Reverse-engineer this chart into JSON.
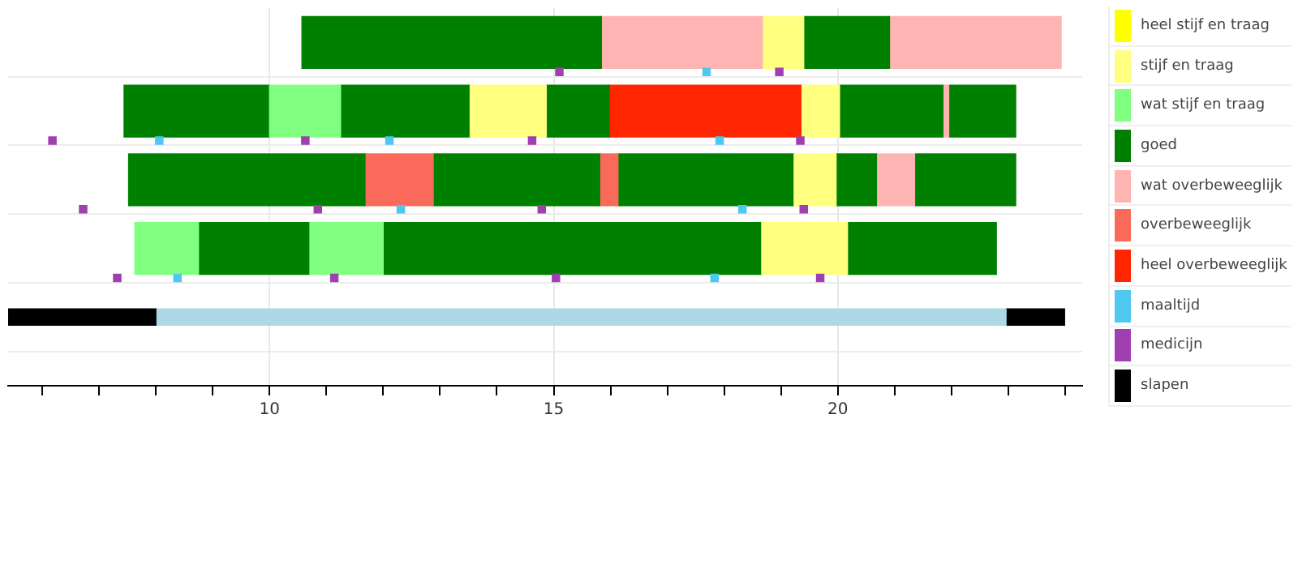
{
  "chart_data": {
    "type": "bar",
    "orientation": "horizontal",
    "categories": [
      null,
      null,
      null,
      null,
      null
    ],
    "xlim": [
      5.4,
      24.3
    ],
    "xticks": [
      {
        "value": 6,
        "label": null
      },
      {
        "value": 7,
        "label": null
      },
      {
        "value": 8,
        "label": null
      },
      {
        "value": 9,
        "label": null
      },
      10,
      {
        "value": 11,
        "label": null
      },
      {
        "value": 12,
        "label": null
      },
      {
        "value": 13,
        "label": null
      },
      {
        "value": 14,
        "label": null
      },
      15,
      {
        "value": 16,
        "label": null
      },
      {
        "value": 17,
        "label": null
      },
      {
        "value": 18,
        "label": null
      },
      {
        "value": 19,
        "label": null
      },
      20,
      {
        "value": 21,
        "label": null
      },
      {
        "value": 22,
        "label": null
      },
      {
        "value": 23,
        "label": null
      },
      {
        "value": 24,
        "label": null
      }
    ],
    "grid": true,
    "legend": "right",
    "tick_labels": "x",
    "marker": "square",
    "series": [
      {
        "name": "heel stijf en traag",
        "color": "#ffff00",
        "base": [
          null,
          null,
          null,
          null,
          null
        ],
        "values": [
          null,
          null,
          null,
          null,
          null
        ]
      },
      {
        "name": "stijf en traag",
        "color": "#ffff80",
        "base": [
          18.69,
          13.53,
          19.23,
          18.66,
          null
        ],
        "values": [
          0.71,
          1.34,
          0.74,
          1.51,
          null
        ]
      },
      {
        "color": "#ffff80",
        "base": [
          null,
          19.37,
          null,
          null,
          null
        ],
        "values": [
          null,
          0.66,
          null,
          null,
          null
        ]
      },
      {
        "name": "wat stijf en traag",
        "color": "#80ff80",
        "base": [
          null,
          10.0,
          null,
          7.63,
          null
        ],
        "values": [
          null,
          1.25,
          null,
          1.12,
          null
        ]
      },
      {
        "color": "#80ff80",
        "base": [
          null,
          null,
          null,
          10.71,
          null
        ],
        "values": [
          null,
          null,
          null,
          1.29,
          null
        ]
      },
      {
        "name": "goed",
        "color": "#008000",
        "base": [
          10.57,
          7.44,
          7.52,
          8.75,
          null
        ],
        "values": [
          5.27,
          2.56,
          4.16,
          1.96,
          null
        ]
      },
      {
        "color": "#008000",
        "base": [
          19.4,
          11.25,
          12.9,
          12.0,
          null
        ],
        "values": [
          1.51,
          2.28,
          2.91,
          6.66,
          null
        ]
      },
      {
        "color": "#008000",
        "base": [
          null,
          14.87,
          16.15,
          20.17,
          null
        ],
        "values": [
          null,
          1.11,
          3.08,
          2.62,
          null
        ]
      },
      {
        "color": "#008000",
        "base": [
          null,
          20.03,
          19.97,
          null,
          null
        ],
        "values": [
          null,
          1.82,
          0.71,
          null,
          null
        ]
      },
      {
        "color": "#008000",
        "base": [
          null,
          21.97,
          21.37,
          null,
          null
        ],
        "values": [
          null,
          1.16,
          1.76,
          null,
          null
        ]
      },
      {
        "name": "wat overbeweeglijk",
        "color": "#ffb4b4",
        "base": [
          15.84,
          21.85,
          20.68,
          null,
          null
        ],
        "values": [
          2.85,
          0.12,
          0.69,
          null,
          null
        ]
      },
      {
        "color": "#ffb4b4",
        "base": [
          20.91,
          null,
          null,
          null,
          null
        ],
        "values": [
          3.02,
          null,
          null,
          null,
          null
        ]
      },
      {
        "name": "overbeweeglijk",
        "color": "#fa6a5a",
        "base": [
          null,
          null,
          11.68,
          null,
          null
        ],
        "values": [
          null,
          null,
          1.22,
          null,
          null
        ]
      },
      {
        "color": "#fa6a5a",
        "base": [
          null,
          null,
          15.81,
          null,
          null
        ],
        "values": [
          null,
          null,
          0.34,
          null,
          null
        ]
      },
      {
        "name": "heel overbeweeglijk",
        "color": "#ff2500",
        "base": [
          null,
          15.98,
          null,
          null,
          null
        ],
        "values": [
          null,
          3.39,
          null,
          null,
          null
        ]
      },
      {
        "name": "maaltijd",
        "type": "scatter",
        "color": "#4fc8f0",
        "values": [
          17.69,
          8.06,
          12.31,
          8.38,
          null
        ]
      },
      {
        "type": "scatter",
        "color": "#4fc8f0",
        "values": [
          null,
          12.11,
          18.32,
          17.83,
          null
        ]
      },
      {
        "type": "scatter",
        "color": "#4fc8f0",
        "values": [
          null,
          17.92,
          null,
          null,
          null
        ]
      },
      {
        "name": "medicijn",
        "type": "scatter",
        "color": "#a040b0",
        "values": [
          15.1,
          6.18,
          6.72,
          7.32,
          null
        ]
      },
      {
        "type": "scatter",
        "color": "#a040b0",
        "values": [
          18.97,
          10.63,
          10.85,
          11.14,
          null
        ]
      },
      {
        "type": "scatter",
        "color": "#a040b0",
        "values": [
          null,
          14.62,
          14.79,
          15.04,
          null
        ]
      },
      {
        "type": "scatter",
        "color": "#a040b0",
        "values": [
          null,
          19.34,
          19.4,
          19.69,
          null
        ]
      },
      {
        "name": "slapen",
        "color": "#000000",
        "base": [
          null,
          null,
          null,
          null,
          5.38
        ],
        "values": [
          null,
          null,
          null,
          null,
          2.62
        ]
      },
      {
        "color": "#add8e6",
        "base": [
          null,
          null,
          null,
          null,
          8.0
        ],
        "values": [
          null,
          null,
          null,
          null,
          14.96
        ]
      },
      {
        "color": "#000000",
        "base": [
          null,
          null,
          null,
          null,
          22.96
        ],
        "values": [
          null,
          null,
          null,
          null,
          1.03
        ]
      }
    ]
  }
}
